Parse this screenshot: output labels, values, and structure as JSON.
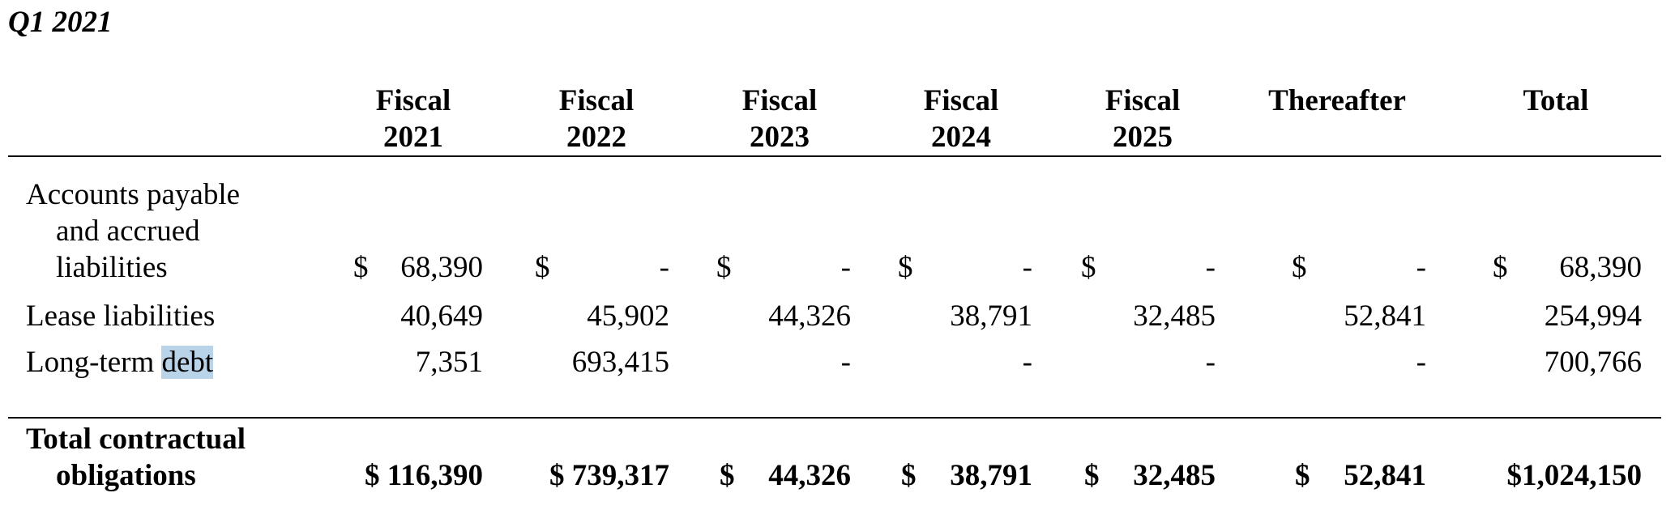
{
  "title": "Q1 2021",
  "columns": [
    {
      "line1": "Fiscal",
      "line2": "2021"
    },
    {
      "line1": "Fiscal",
      "line2": "2022"
    },
    {
      "line1": "Fiscal",
      "line2": "2023"
    },
    {
      "line1": "Fiscal",
      "line2": "2024"
    },
    {
      "line1": "Fiscal",
      "line2": "2025"
    },
    {
      "line1": "Thereafter",
      "line2": ""
    },
    {
      "line1": "Total",
      "line2": ""
    }
  ],
  "currency_symbol": "$",
  "rows": {
    "accounts_payable": {
      "label_lines": [
        "Accounts payable",
        "and accrued",
        "liabilities"
      ],
      "values": [
        "68,390",
        "-",
        "-",
        "-",
        "-",
        "-",
        "68,390"
      ]
    },
    "lease_liabilities": {
      "label": "Lease liabilities",
      "values": [
        "40,649",
        "45,902",
        "44,326",
        "38,791",
        "32,485",
        "52,841",
        "254,994"
      ]
    },
    "long_term_debt": {
      "label_prefix": "Long-term ",
      "label_highlight": "debt",
      "values": [
        "7,351",
        "693,415",
        "-",
        "-",
        "-",
        "-",
        "700,766"
      ]
    },
    "total": {
      "label_lines": [
        "Total contractual",
        "obligations"
      ],
      "values": [
        "$ 116,390",
        "$ 739,317",
        "44,326",
        "38,791",
        "32,485",
        "52,841",
        "$1,024,150"
      ]
    }
  }
}
